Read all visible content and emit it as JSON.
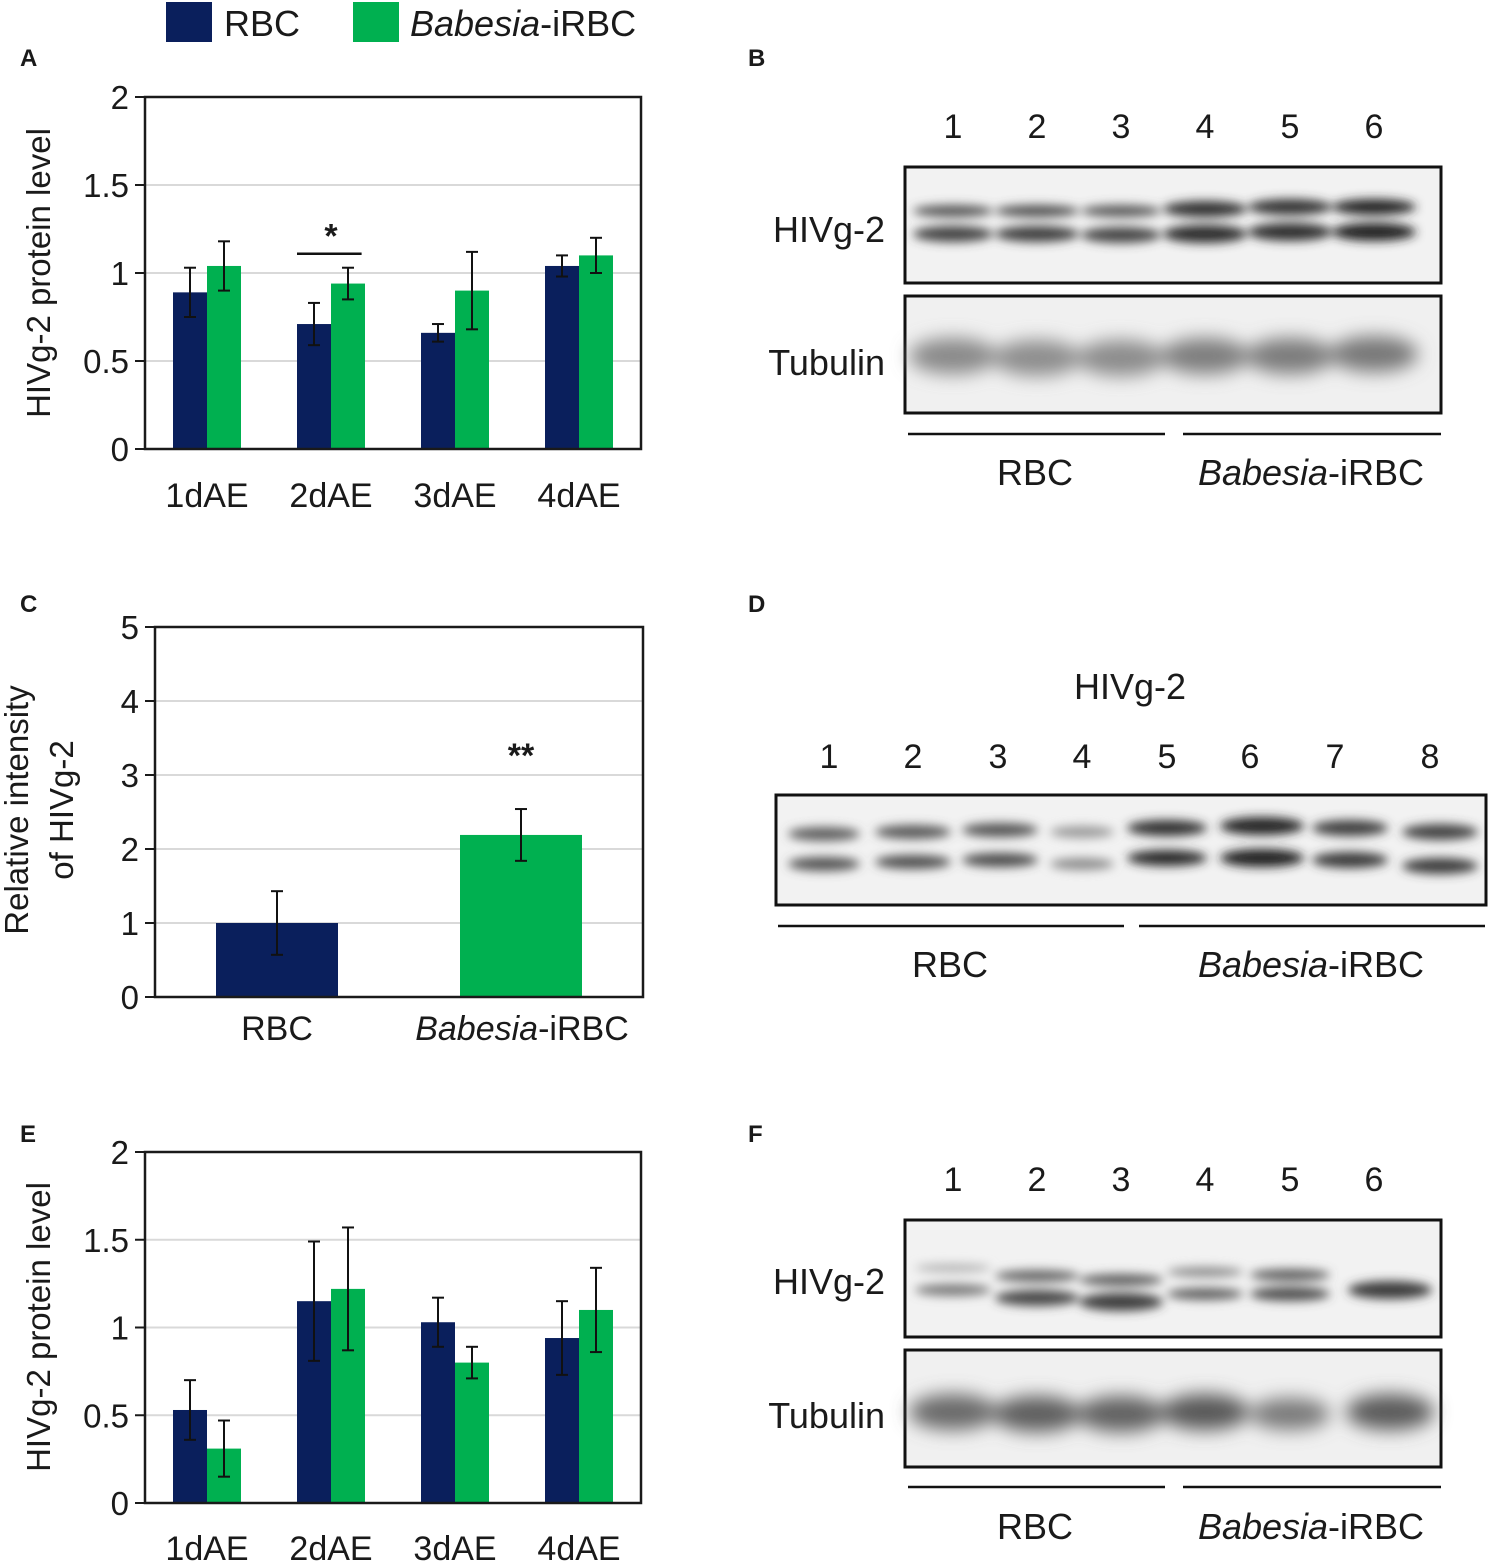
{
  "legend": {
    "items": [
      {
        "label": "RBC",
        "color": "#0a1f5c"
      },
      {
        "label_italic": "Babesia",
        "label_rest": "-iRBC",
        "color": "#00b050"
      }
    ]
  },
  "colors": {
    "rbc": "#0a1f5c",
    "irbc": "#00b050",
    "grid": "#d9d9d9",
    "axis": "#1a1a1a"
  },
  "panels": {
    "A": {
      "letter": "A"
    },
    "B": {
      "letter": "B"
    },
    "C": {
      "letter": "C"
    },
    "D": {
      "letter": "D"
    },
    "E": {
      "letter": "E"
    },
    "F": {
      "letter": "F"
    }
  },
  "chart_data": [
    {
      "id": "A",
      "type": "bar",
      "ylabel": "HIVg-2 protein level",
      "ylim": [
        0,
        2
      ],
      "yticks": [
        "0",
        "0.5",
        "1",
        "1.5",
        "2"
      ],
      "categories": [
        "1dAE",
        "2dAE",
        "3dAE",
        "4dAE"
      ],
      "series": [
        {
          "name": "RBC",
          "values": [
            0.89,
            0.71,
            0.66,
            1.04
          ],
          "errors": [
            0.14,
            0.12,
            0.05,
            0.06
          ]
        },
        {
          "name": "Babesia-iRBC",
          "values": [
            1.04,
            0.94,
            0.9,
            1.1
          ],
          "errors": [
            0.14,
            0.09,
            0.22,
            0.1
          ]
        }
      ],
      "significance": [
        {
          "category": "2dAE",
          "label": "*"
        }
      ]
    },
    {
      "id": "C",
      "type": "bar",
      "ylabel_lines": [
        "Relative intensity",
        "of HIVg-2"
      ],
      "ylim": [
        0,
        5
      ],
      "yticks": [
        "0",
        "1",
        "2",
        "3",
        "4",
        "5"
      ],
      "categories": [
        "RBC",
        "Babesia-iRBC"
      ],
      "category_italic_parts": [
        "",
        "Babesia"
      ],
      "category_rest_parts": [
        "RBC",
        "-iRBC"
      ],
      "values": [
        1.0,
        2.19
      ],
      "errors": [
        0.43,
        0.35
      ],
      "significance": [
        {
          "category": "Babesia-iRBC",
          "label": "**"
        }
      ]
    },
    {
      "id": "E",
      "type": "bar",
      "ylabel": "HIVg-2 protein level",
      "ylim": [
        0,
        2
      ],
      "yticks": [
        "0",
        "0.5",
        "1",
        "1.5",
        "2"
      ],
      "categories": [
        "1dAE",
        "2dAE",
        "3dAE",
        "4dAE"
      ],
      "series": [
        {
          "name": "RBC",
          "values": [
            0.53,
            1.15,
            1.03,
            0.94
          ],
          "errors": [
            0.17,
            0.34,
            0.14,
            0.21
          ]
        },
        {
          "name": "Babesia-iRBC",
          "values": [
            0.31,
            1.22,
            0.8,
            1.1
          ],
          "errors": [
            0.16,
            0.35,
            0.09,
            0.24
          ]
        }
      ]
    }
  ],
  "blots": {
    "B": {
      "lanes": [
        "1",
        "2",
        "3",
        "4",
        "5",
        "6"
      ],
      "rows": [
        "HIVg-2",
        "Tubulin"
      ],
      "groups": [
        "RBC",
        "Babesia-iRBC"
      ]
    },
    "D": {
      "title": "HIVg-2",
      "lanes": [
        "1",
        "2",
        "3",
        "4",
        "5",
        "6",
        "7",
        "8"
      ],
      "groups": [
        "RBC",
        "Babesia-iRBC"
      ]
    },
    "F": {
      "lanes": [
        "1",
        "2",
        "3",
        "4",
        "5",
        "6"
      ],
      "rows": [
        "HIVg-2",
        "Tubulin"
      ],
      "groups": [
        "RBC",
        "Babesia-iRBC"
      ]
    }
  },
  "group_labels": {
    "rbc": "RBC",
    "irbc_italic": "Babesia",
    "irbc_rest": "-iRBC"
  }
}
